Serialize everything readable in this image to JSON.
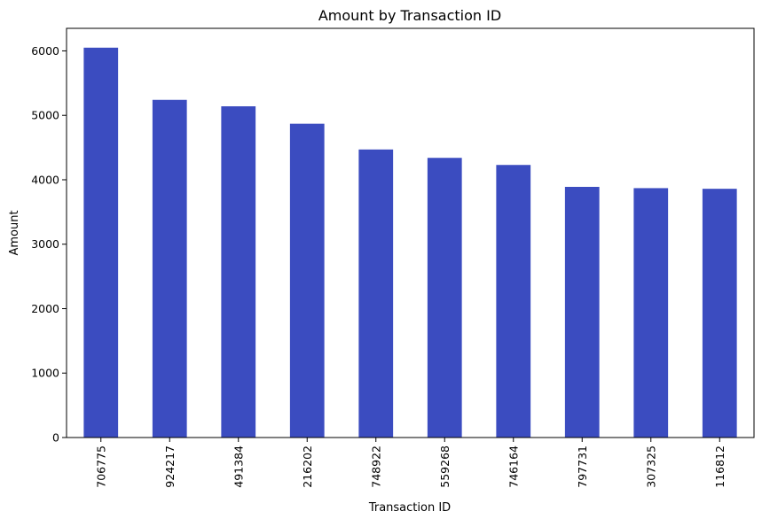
{
  "chart_data": {
    "type": "bar",
    "title": "Amount by Transaction ID",
    "xlabel": "Transaction ID",
    "ylabel": "Amount",
    "categories": [
      "706775",
      "924217",
      "491384",
      "216202",
      "748922",
      "559268",
      "746164",
      "797731",
      "307325",
      "116812"
    ],
    "values": [
      6050,
      5240,
      5140,
      4870,
      4470,
      4340,
      4230,
      3890,
      3870,
      3860
    ],
    "ylim": [
      0,
      6350
    ],
    "yticks": [
      0,
      1000,
      2000,
      3000,
      4000,
      5000,
      6000
    ],
    "grid": false,
    "bar_color": "#3b4cc0"
  }
}
